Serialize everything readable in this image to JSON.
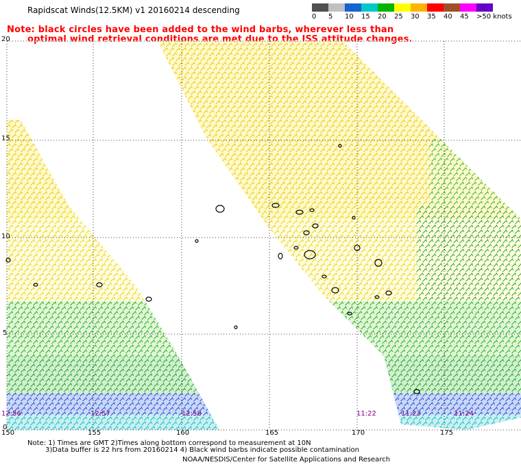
{
  "header": {
    "title": "Rapidscat Winds(12.5KM)  v1  20160214  descending",
    "note_line1": "Note: black circles have been added to the wind barbs, wherever less than",
    "note_line2": "optimal wind retrieval conditions are met due to the ISS attitude changes."
  },
  "legend": {
    "unit": "knots",
    "entries": [
      {
        "label": "0",
        "color": "#505050"
      },
      {
        "label": "5",
        "color": "#c0c0c0"
      },
      {
        "label": "10",
        "color": "#1464d2"
      },
      {
        "label": "15",
        "color": "#00c8c8"
      },
      {
        "label": "20",
        "color": "#00b400"
      },
      {
        "label": "25",
        "color": "#ffff00"
      },
      {
        "label": "30",
        "color": "#ffb400"
      },
      {
        "label": "35",
        "color": "#ff0000"
      },
      {
        "label": "40",
        "color": "#a05028"
      },
      {
        "label": "45",
        "color": "#ff00ff"
      },
      {
        "label": ">50",
        "color": "#6400c8"
      }
    ]
  },
  "map": {
    "lat_labels": [
      "20",
      "15",
      "10",
      "5",
      "0"
    ],
    "lon_labels": [
      "150",
      "155",
      "160",
      "165",
      "170",
      "175"
    ],
    "time_labels": [
      "12:56",
      "12:57",
      "12:58",
      "11:22",
      "11:23",
      "11:24"
    ]
  },
  "footer": {
    "line1": "Note:  1) Times are GMT  2)Times along bottom correspond to measurement at 10N",
    "line2": "3)Data buffer is 22 hrs from 20160214  4) Black wind barbs indicate possible contamination",
    "line3": "NOAA/NESDIS/Center for Satellite Applications and Research"
  }
}
